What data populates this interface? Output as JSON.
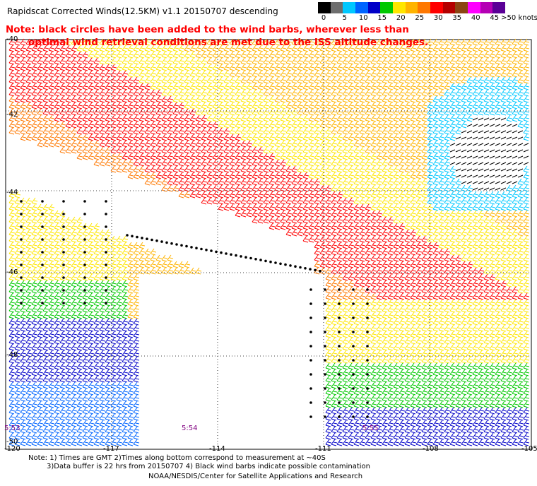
{
  "title": "Rapidscat Corrected Winds(12.5KM) v1.1 20150707 descending",
  "note_lines": [
    "Note: black circles have been added to the wind barbs, wherever less than",
    "optimal wind retrieval conditions are met due to the ISS altitude changes."
  ],
  "legend": {
    "colors": [
      "#000000",
      "#6e6e6e",
      "#00c8ff",
      "#0064ff",
      "#0000c8",
      "#00c800",
      "#ffe600",
      "#ffb400",
      "#ff7800",
      "#ff0000",
      "#b40000",
      "#8b4513",
      "#ff00ff",
      "#b400b4",
      "#5a0096"
    ],
    "labels": [
      "0",
      "5",
      "10",
      "15",
      "20",
      "25",
      "30",
      "35",
      "40",
      "45",
      ">50 knots"
    ]
  },
  "lat_labels": [
    "-40",
    "-42",
    "-44",
    "-46",
    "-48",
    "-50"
  ],
  "lon_labels": [
    "-120",
    "-117",
    "-114",
    "-111",
    "-108",
    "-105"
  ],
  "time_labels": [
    "5:53",
    "5:54",
    "5:55"
  ],
  "footer": {
    "line1": "Note: 1) Times are GMT 2)Times along bottom correspond to measurement at ~40S",
    "line2": "3)Data buffer is 22 hrs from 20150707 4) Black wind barbs indicate possible contamination",
    "credit": "NOAA/NESDIS/Center for Satellite Applications and Research"
  }
}
